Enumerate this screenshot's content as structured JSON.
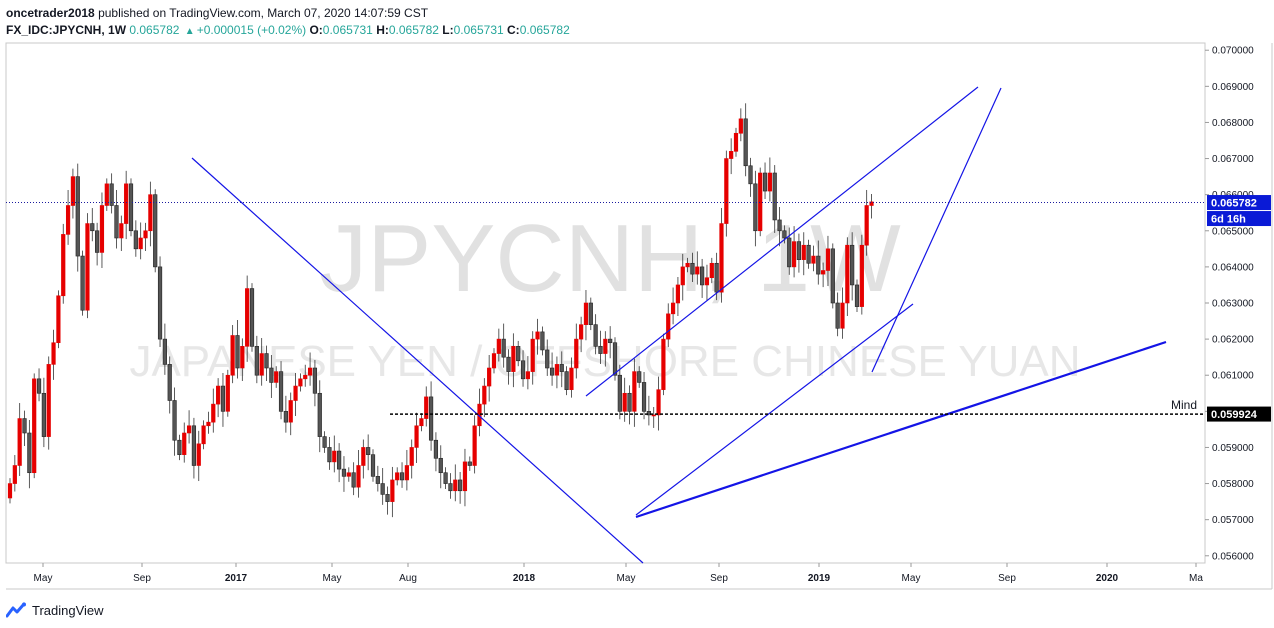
{
  "header": {
    "publisher_user": "oncetrader2018",
    "publisher_text": "published on TradingView.com, March 07, 2020 14:07:59 CST",
    "symbol": "FX_IDC:JPYCNH,",
    "interval": "1W",
    "price": "0.065782",
    "change": "+0.000015 (+0.02%)",
    "o_label": "O:",
    "o_value": "0.065731",
    "h_label": "H:",
    "h_value": "0.065782",
    "l_label": "L:",
    "l_value": "0.065731",
    "c_label": "C:",
    "c_value": "0.065782"
  },
  "watermark": {
    "symbol": "JPYCNH, 1W",
    "description": "JAPANESE YEN / OFFSHORE CHINESE YUAN"
  },
  "price_axis": {
    "ticks": [
      "0.070000",
      "0.069000",
      "0.068000",
      "0.067000",
      "0.066000",
      "0.065000",
      "0.064000",
      "0.063000",
      "0.062000",
      "0.061000",
      "0.060000",
      "0.059000",
      "0.058000",
      "0.057000",
      "0.056000"
    ],
    "current_price_label": "0.065782",
    "countdown_label": "6d 16h",
    "level_label": "0.059924",
    "level_name": "Mind"
  },
  "time_axis": {
    "labels": [
      {
        "text": "May",
        "bold": false
      },
      {
        "text": "Sep",
        "bold": false
      },
      {
        "text": "2017",
        "bold": true
      },
      {
        "text": "May",
        "bold": false
      },
      {
        "text": "Aug",
        "bold": false
      },
      {
        "text": "2018",
        "bold": true
      },
      {
        "text": "May",
        "bold": false
      },
      {
        "text": "Sep",
        "bold": false
      },
      {
        "text": "2019",
        "bold": true
      },
      {
        "text": "May",
        "bold": false
      },
      {
        "text": "Sep",
        "bold": false
      },
      {
        "text": "2020",
        "bold": true
      },
      {
        "text": "Ma",
        "bold": false
      }
    ]
  },
  "colors": {
    "up": "#e60000",
    "down": "#4a4a4a",
    "trendline": "#1414e6",
    "price_line": "#1a1a9e",
    "price_label_bg": "#0a1ad6",
    "level_line": "#000000"
  },
  "footer": {
    "brand": "TradingView",
    "logo_icon": "tradingview-logo-icon"
  },
  "chart_data": {
    "type": "candlestick",
    "title": "JPYCNH, 1W",
    "subtitle": "JAPANESE YEN / OFFSHORE CHINESE YUAN",
    "ylim": [
      0.0558,
      0.0702
    ],
    "x_axis_labels": [
      "May",
      "Sep",
      "2017",
      "May",
      "Aug",
      "2018",
      "May",
      "Sep",
      "2019",
      "May",
      "Sep",
      "2020",
      "Ma"
    ],
    "close_series": [
      0.058,
      0.0585,
      0.0598,
      0.0594,
      0.0583,
      0.0609,
      0.0605,
      0.0593,
      0.0613,
      0.0619,
      0.0632,
      0.0649,
      0.0657,
      0.0665,
      0.0643,
      0.0628,
      0.0652,
      0.065,
      0.0644,
      0.0657,
      0.0663,
      0.0657,
      0.0648,
      0.0652,
      0.0663,
      0.065,
      0.0645,
      0.0648,
      0.065,
      0.066,
      0.064,
      0.062,
      0.0613,
      0.0603,
      0.0592,
      0.0588,
      0.0594,
      0.0596,
      0.0585,
      0.0591,
      0.0596,
      0.0597,
      0.0602,
      0.0607,
      0.06,
      0.061,
      0.0621,
      0.0612,
      0.0618,
      0.0634,
      0.0618,
      0.061,
      0.0616,
      0.0612,
      0.0608,
      0.0611,
      0.06,
      0.0597,
      0.0603,
      0.0607,
      0.0609,
      0.061,
      0.0612,
      0.0605,
      0.0593,
      0.059,
      0.0586,
      0.0589,
      0.0584,
      0.0582,
      0.0583,
      0.0579,
      0.0585,
      0.059,
      0.0588,
      0.0582,
      0.058,
      0.0577,
      0.0575,
      0.0581,
      0.0583,
      0.0581,
      0.0585,
      0.059,
      0.0596,
      0.0598,
      0.0604,
      0.0592,
      0.0587,
      0.0583,
      0.058,
      0.0578,
      0.0581,
      0.0578,
      0.0586,
      0.0585,
      0.0596,
      0.0602,
      0.0607,
      0.0612,
      0.0616,
      0.062,
      0.0615,
      0.0611,
      0.0618,
      0.0614,
      0.0609,
      0.0611,
      0.062,
      0.0622,
      0.0617,
      0.0612,
      0.061,
      0.0613,
      0.0611,
      0.0606,
      0.0612,
      0.062,
      0.0624,
      0.063,
      0.0624,
      0.0618,
      0.0616,
      0.062,
      0.0619,
      0.061,
      0.06,
      0.0605,
      0.06,
      0.0611,
      0.0608,
      0.06,
      0.0599,
      0.0599,
      0.0606,
      0.062,
      0.0627,
      0.063,
      0.0635,
      0.064,
      0.0641,
      0.0638,
      0.064,
      0.0635,
      0.0637,
      0.0641,
      0.0633,
      0.0652,
      0.067,
      0.0672,
      0.0677,
      0.0681,
      0.0668,
      0.0663,
      0.065,
      0.0666,
      0.0661,
      0.0666,
      0.0653,
      0.065,
      0.0648,
      0.064,
      0.0647,
      0.0642,
      0.0646,
      0.0641,
      0.0643,
      0.0638,
      0.0639,
      0.0645,
      0.063,
      0.0623,
      0.063,
      0.0646,
      0.0635,
      0.0629,
      0.0646,
      0.0657,
      0.0658
    ],
    "annotations": [
      {
        "type": "horizontal_level",
        "value": 0.059924,
        "label": "Mind"
      },
      {
        "type": "current_price",
        "value": 0.065782
      }
    ]
  }
}
